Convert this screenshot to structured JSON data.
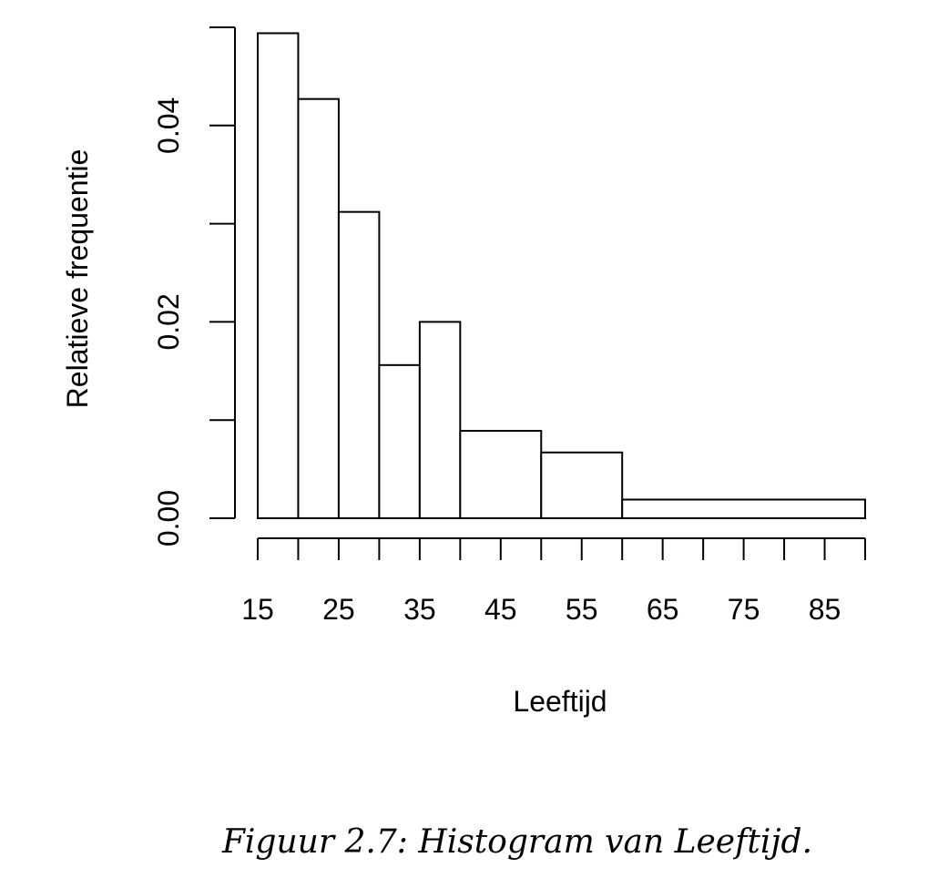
{
  "chart_data": {
    "type": "bar",
    "subtype": "histogram",
    "xlabel": "Leeftijd",
    "ylabel": "Relatieve frequentie",
    "bins": [
      {
        "from": 15,
        "to": 20,
        "value": 0.0494
      },
      {
        "from": 20,
        "to": 25,
        "value": 0.0427
      },
      {
        "from": 25,
        "to": 30,
        "value": 0.0312
      },
      {
        "from": 30,
        "to": 35,
        "value": 0.0156
      },
      {
        "from": 35,
        "to": 40,
        "value": 0.02
      },
      {
        "from": 40,
        "to": 50,
        "value": 0.0089
      },
      {
        "from": 50,
        "to": 60,
        "value": 0.0067
      },
      {
        "from": 60,
        "to": 90,
        "value": 0.0019
      }
    ],
    "xlim": [
      15,
      90
    ],
    "ylim": [
      0,
      0.05
    ],
    "x_ticks": [
      15,
      20,
      25,
      30,
      35,
      40,
      45,
      50,
      55,
      60,
      65,
      70,
      75,
      80,
      85,
      90
    ],
    "x_tick_labels": [
      "15",
      "25",
      "35",
      "45",
      "55",
      "65",
      "75",
      "85"
    ],
    "y_ticks": [
      0,
      0.01,
      0.02,
      0.03,
      0.04,
      0.05
    ],
    "y_tick_labels": [
      "0.00",
      "0.02",
      "0.04"
    ],
    "grid": false,
    "legend": "none"
  },
  "caption": "Figuur 2.7: Histogram van Leeftijd.",
  "colors": {
    "bar_fill": "#ffffff",
    "bar_stroke": "#000000",
    "background": "#ffffff"
  }
}
